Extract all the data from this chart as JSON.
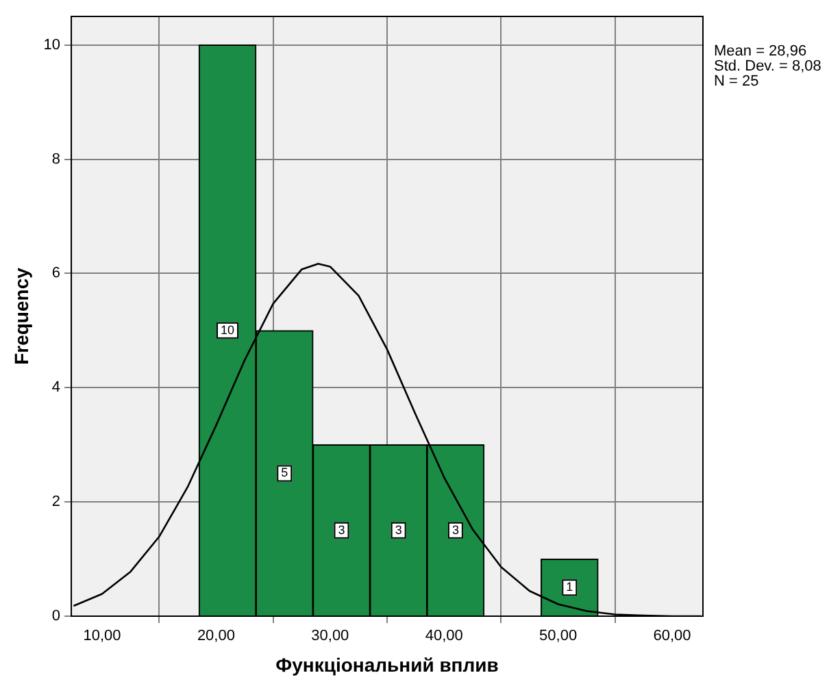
{
  "chart_data": {
    "type": "histogram",
    "xlabel": "Функціональний вплив",
    "ylabel": "Frequency",
    "bins": [
      18.5,
      23.5,
      28.5,
      33.5,
      38.5,
      43.5,
      48.5,
      53.5
    ],
    "values": [
      10,
      5,
      3,
      3,
      3,
      0,
      1
    ],
    "value_labels": [
      "10",
      "5",
      "3",
      "3",
      "3",
      null,
      "1"
    ],
    "color": "#1a8c45",
    "series": [
      {
        "type": "line",
        "color": "#000000",
        "x": [
          7.5,
          10,
          12.5,
          15,
          17.5,
          20,
          22.5,
          25,
          27.5,
          28.96,
          30,
          32.5,
          35,
          37.5,
          40,
          42.5,
          45,
          47.5,
          50,
          52.5,
          55,
          57.5,
          60,
          62.5
        ],
        "values": [
          0.18,
          0.39,
          0.78,
          1.39,
          2.26,
          3.34,
          4.48,
          5.47,
          6.07,
          6.17,
          6.12,
          5.61,
          4.67,
          3.53,
          2.43,
          1.52,
          0.86,
          0.44,
          0.21,
          0.09,
          0.03,
          0.01,
          0,
          0
        ]
      }
    ],
    "xlim": [
      7.3,
      62.7
    ],
    "xticks": [
      {
        "value": 10,
        "label": "10,00"
      },
      {
        "value": 20,
        "label": "20,00"
      },
      {
        "value": 30,
        "label": "30,00"
      },
      {
        "value": 40,
        "label": "40,00"
      },
      {
        "value": 50,
        "label": "50,00"
      },
      {
        "value": 60,
        "label": "60,00"
      }
    ],
    "ylim": [
      0,
      10.5
    ],
    "yticks": [
      0,
      2,
      4,
      6,
      8,
      10
    ],
    "grid": true,
    "legend": false,
    "marker": "none",
    "line_style": "solid",
    "annotations": [
      "Mean = 28,96",
      "Std. Dev. = 8,08",
      "N = 25"
    ]
  }
}
